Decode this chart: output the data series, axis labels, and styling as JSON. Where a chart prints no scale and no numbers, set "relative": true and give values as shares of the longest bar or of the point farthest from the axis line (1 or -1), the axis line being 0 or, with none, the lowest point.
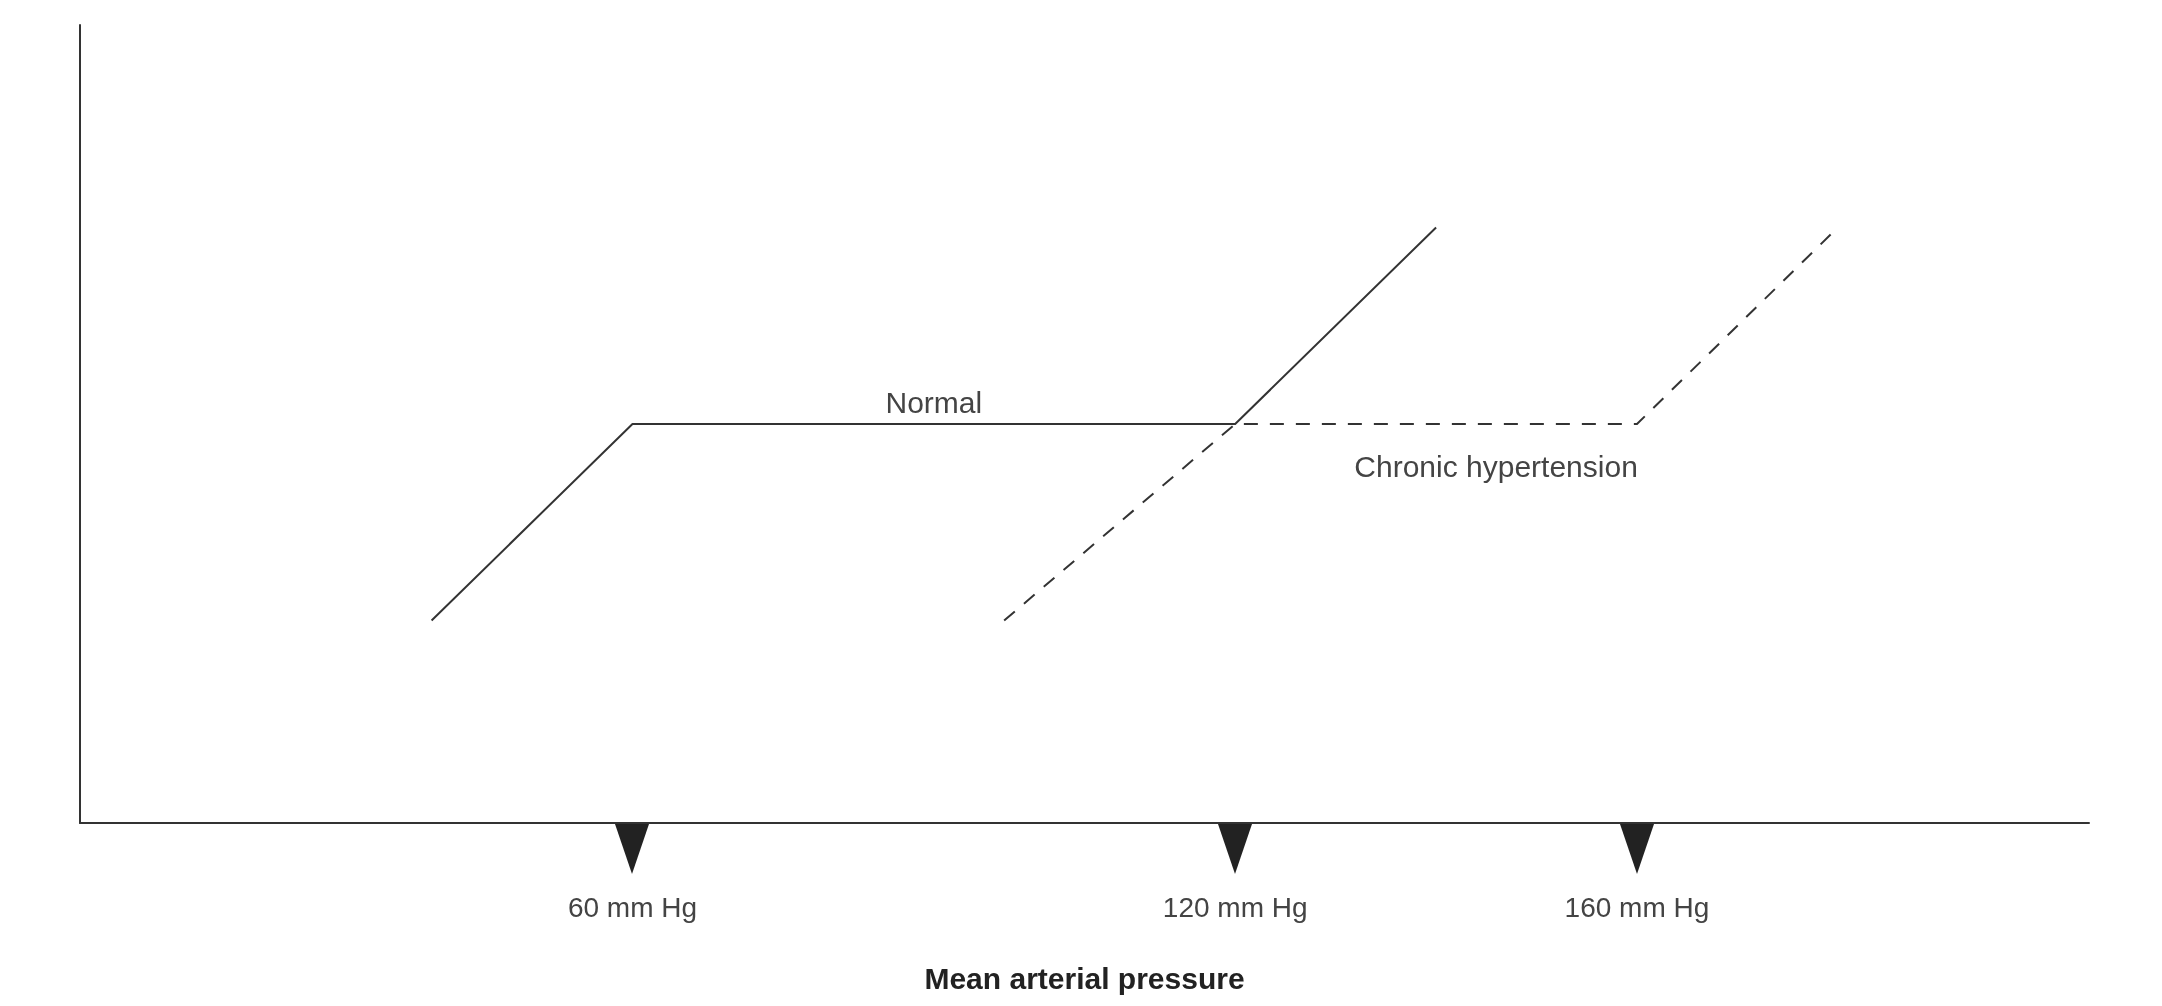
{
  "chart_data": {
    "type": "line",
    "relative": true,
    "xlabel": "Mean arterial pressure",
    "xlim": [
      5,
      205
    ],
    "xticks": [
      {
        "value": 60,
        "label": "60 mm Hg"
      },
      {
        "value": 120,
        "label": "120 mm Hg"
      },
      {
        "value": 160,
        "label": "160 mm Hg"
      }
    ],
    "series": [
      {
        "name": "Normal",
        "color": "#333333",
        "line_style": "solid",
        "x": [
          40,
          60,
          120,
          140
        ],
        "values": [
          0.34,
          0.67,
          0.67,
          1
        ]
      },
      {
        "name": "Chronic hypertension",
        "color": "#333333",
        "line_style": "dashed",
        "x": [
          97,
          120,
          160,
          180
        ],
        "values": [
          0.34,
          0.67,
          0.67,
          1
        ]
      }
    ],
    "marker": "none",
    "grid": false,
    "legend": false,
    "tick_labels": "x"
  }
}
